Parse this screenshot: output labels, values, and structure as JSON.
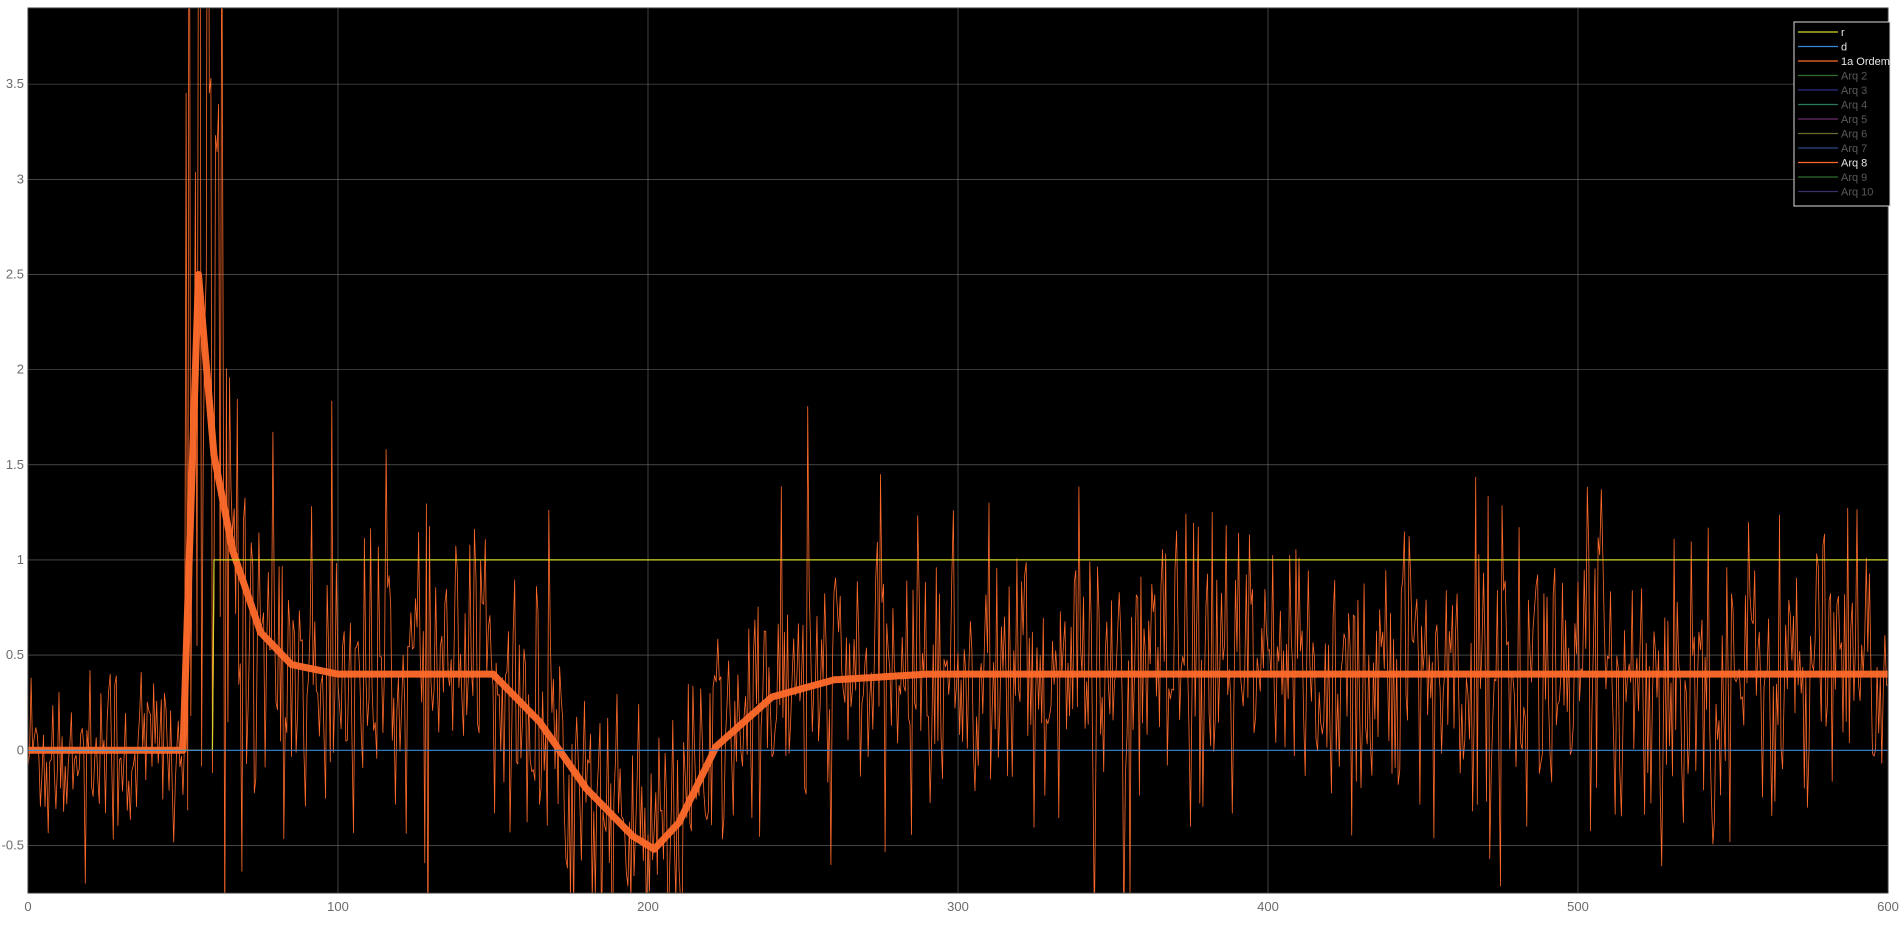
{
  "chart_data": {
    "type": "line",
    "title": "",
    "xlabel": "",
    "ylabel": "",
    "xlim": [
      0,
      600
    ],
    "ylim": [
      -0.75,
      3.9
    ],
    "x_ticks": [
      "0",
      "100",
      "200",
      "300",
      "400",
      "500",
      "600"
    ],
    "y_ticks": [
      "-0.5",
      "0",
      "0.5",
      "1",
      "1.5",
      "2",
      "2.5",
      "3",
      "3.5"
    ],
    "grid": true,
    "background_color": "#000000",
    "legend_position": "top-right",
    "sample_step": 0.5,
    "series": [
      {
        "name": "r",
        "color": "#d6d62b",
        "legend_text_color": "#e6e6e6",
        "style": "step",
        "values": [
          [
            0,
            0
          ],
          [
            59.5,
            0
          ],
          [
            60,
            1
          ],
          [
            600,
            1
          ]
        ]
      },
      {
        "name": "d",
        "color": "#3a86d8",
        "legend_text_color": "#e6e6e6",
        "style": "step",
        "values": [
          [
            0,
            0
          ],
          [
            600,
            0
          ]
        ]
      },
      {
        "name": "1a Ordem",
        "color": "#ff6a2a",
        "legend_text_color": "#e6e6e6",
        "style": "noisy",
        "baseline": [
          [
            0,
            0
          ],
          [
            50,
            0
          ],
          [
            55,
            2.5
          ],
          [
            60,
            1.55
          ],
          [
            66,
            1.05
          ],
          [
            75,
            0.62
          ],
          [
            85,
            0.45
          ],
          [
            100,
            0.4
          ],
          [
            150,
            0.4
          ],
          [
            165,
            0.15
          ],
          [
            180,
            -0.2
          ],
          [
            195,
            -0.45
          ],
          [
            202,
            -0.52
          ],
          [
            210,
            -0.38
          ],
          [
            222,
            0.02
          ],
          [
            240,
            0.28
          ],
          [
            260,
            0.37
          ],
          [
            290,
            0.4
          ],
          [
            600,
            0.4
          ]
        ],
        "envelope": [
          [
            0,
            0.65
          ],
          [
            50,
            0.65
          ],
          [
            51,
            4.5
          ],
          [
            62,
            4.5
          ],
          [
            65,
            1.7
          ],
          [
            80,
            1.0
          ],
          [
            100,
            0.9
          ],
          [
            120,
            0.95
          ],
          [
            150,
            0.85
          ],
          [
            200,
            0.75
          ],
          [
            300,
            0.85
          ],
          [
            430,
            0.95
          ],
          [
            460,
            1.05
          ],
          [
            480,
            1.0
          ],
          [
            600,
            0.9
          ]
        ]
      },
      {
        "name": "Arq 2",
        "color": "#2d6b2d",
        "legend_text_color": "#5a5a5a",
        "style": "hidden"
      },
      {
        "name": "Arq 3",
        "color": "#2d2d8a",
        "legend_text_color": "#5a5a5a",
        "style": "hidden"
      },
      {
        "name": "Arq 4",
        "color": "#2d7b5a",
        "legend_text_color": "#5a5a5a",
        "style": "hidden"
      },
      {
        "name": "Arq 5",
        "color": "#6b2d6b",
        "legend_text_color": "#5a5a5a",
        "style": "hidden"
      },
      {
        "name": "Arq 6",
        "color": "#6b6b2d",
        "legend_text_color": "#5a5a5a",
        "style": "hidden"
      },
      {
        "name": "Arq 7",
        "color": "#2d4a8a",
        "legend_text_color": "#5a5a5a",
        "style": "hidden"
      },
      {
        "name": "Arq 8",
        "color": "#ff6a2a",
        "legend_text_color": "#e6e6e6",
        "style": "hidden"
      },
      {
        "name": "Arq 9",
        "color": "#2d6b2d",
        "legend_text_color": "#5a5a5a",
        "style": "hidden"
      },
      {
        "name": "Arq 10",
        "color": "#3d2d6b",
        "legend_text_color": "#5a5a5a",
        "style": "hidden"
      }
    ]
  }
}
